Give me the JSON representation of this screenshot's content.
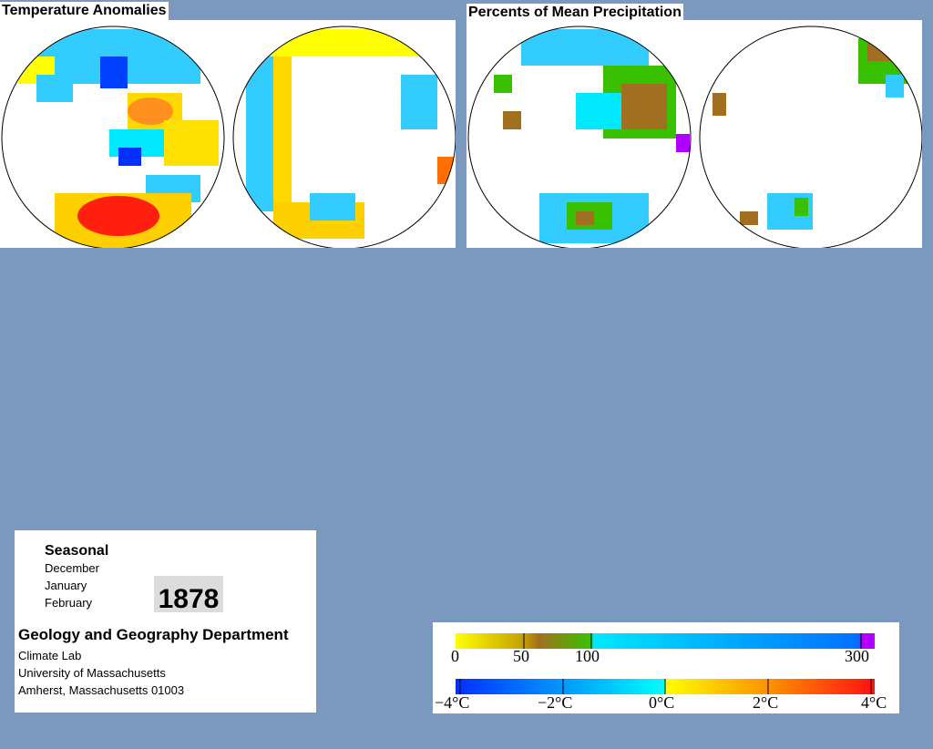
{
  "temperature_panel": {
    "title": "Temperature Anomalies"
  },
  "precipitation_panel": {
    "title": "Percents of Mean Precipitation"
  },
  "info": {
    "season_label": "Seasonal",
    "months": [
      "December",
      "January",
      "February"
    ],
    "year": "1878",
    "department": "Geology and Geography Department",
    "address_lines": [
      "Climate Lab",
      "University of Massachusetts",
      "Amherst, Massachusetts 01003"
    ]
  },
  "legend": {
    "precipitation": {
      "labels": [
        "0",
        "50",
        "100",
        "300"
      ],
      "colors": [
        "#ffff00",
        "#a07020",
        "#39c000",
        "#00e8ff",
        "#0070ff",
        "#b000ff"
      ]
    },
    "temperature": {
      "labels": [
        "−4°C",
        "−2°C",
        "0°C",
        "2°C",
        "4°C"
      ],
      "colors": [
        "#0030ff",
        "#00aaff",
        "#00ffff",
        "#ffff00",
        "#ff9000",
        "#ff1010"
      ]
    }
  },
  "palette": {
    "background": "#7b98be",
    "panel": "#ffffff"
  }
}
